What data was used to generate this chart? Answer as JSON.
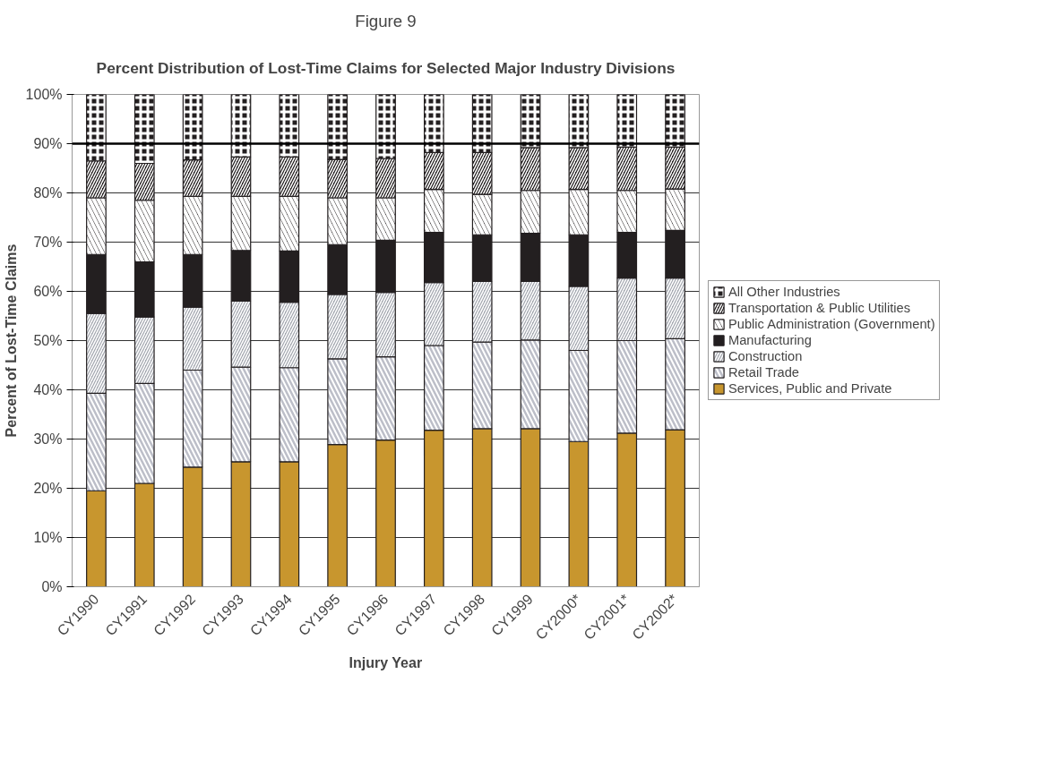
{
  "chart_data": {
    "type": "bar",
    "stacked": true,
    "annotations": [
      "Figure 9"
    ],
    "title": "Percent Distribution of Lost-Time Claims for Selected Major Industry Divisions",
    "xlabel": "Injury Year",
    "ylabel": "Percent of Lost-Time Claims",
    "categories": [
      "CY1990",
      "CY1991",
      "CY1992",
      "CY1993",
      "CY1994",
      "CY1995",
      "CY1996",
      "CY1997",
      "CY1998",
      "CY1999",
      "CY2000*",
      "CY2001*",
      "CY2002*"
    ],
    "series": [
      {
        "name": "Services, Public and Private",
        "color": "#c8962e",
        "values": [
          19.5,
          21.0,
          24.3,
          25.4,
          25.4,
          28.9,
          29.8,
          31.8,
          32.1,
          32.1,
          29.5,
          31.2,
          31.9
        ]
      },
      {
        "name": "Retail Trade",
        "color": "#bcbec8",
        "values": [
          19.8,
          20.3,
          19.7,
          19.2,
          19.1,
          17.4,
          16.9,
          17.2,
          17.6,
          18.0,
          18.5,
          18.8,
          18.5
        ]
      },
      {
        "name": "Construction",
        "color": "#a4a8b0",
        "values": [
          16.2,
          13.5,
          12.8,
          13.4,
          13.3,
          13.1,
          13.1,
          12.8,
          12.3,
          11.9,
          13.0,
          12.7,
          12.3
        ]
      },
      {
        "name": "Manufacturing",
        "color": "#231f20",
        "values": [
          12.0,
          11.2,
          10.7,
          10.3,
          10.4,
          10.1,
          10.6,
          10.2,
          9.5,
          9.8,
          10.5,
          9.3,
          9.7
        ]
      },
      {
        "name": "Public Administration (Government)",
        "color": "#231f20",
        "values": [
          11.5,
          12.5,
          11.8,
          11.0,
          11.1,
          9.5,
          8.6,
          8.7,
          8.2,
          8.7,
          9.2,
          8.5,
          8.4
        ]
      },
      {
        "name": "Transportation & Public Utilities",
        "color": "#231f20",
        "values": [
          7.5,
          7.5,
          7.4,
          8.0,
          8.0,
          7.8,
          8.0,
          7.5,
          8.5,
          8.7,
          8.5,
          8.8,
          8.5
        ]
      },
      {
        "name": "All Other Industries",
        "color": "#231f20",
        "values": [
          13.5,
          14.0,
          13.3,
          12.7,
          12.7,
          13.2,
          13.0,
          11.8,
          11.8,
          10.8,
          10.8,
          10.7,
          10.7
        ]
      }
    ],
    "ylim": [
      0,
      100
    ],
    "yticks": [
      {
        "value": 0,
        "label": "0%"
      },
      {
        "value": 10,
        "label": "10%"
      },
      {
        "value": 20,
        "label": "20%"
      },
      {
        "value": 30,
        "label": "30%"
      },
      {
        "value": 40,
        "label": "40%"
      },
      {
        "value": 50,
        "label": "50%"
      },
      {
        "value": 60,
        "label": "60%"
      },
      {
        "value": 70,
        "label": "70%"
      },
      {
        "value": 80,
        "label": "80%"
      },
      {
        "value": 90,
        "label": "90%"
      },
      {
        "value": 100,
        "label": "100%"
      }
    ],
    "ref_lines": [
      {
        "axis": "y",
        "value": 90,
        "label": null,
        "color": "#000000"
      }
    ],
    "grid": "y",
    "legend": "right"
  }
}
